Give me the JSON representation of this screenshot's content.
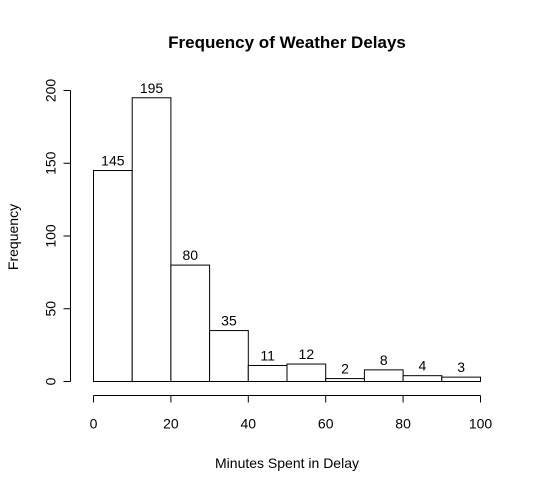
{
  "chart_data": {
    "type": "bar",
    "title": "Frequency of Weather Delays",
    "xlabel": "Minutes Spent in Delay",
    "ylabel": "Frequency",
    "bins": [
      [
        0,
        10
      ],
      [
        10,
        20
      ],
      [
        20,
        30
      ],
      [
        30,
        40
      ],
      [
        40,
        50
      ],
      [
        50,
        60
      ],
      [
        60,
        70
      ],
      [
        70,
        80
      ],
      [
        80,
        90
      ],
      [
        90,
        100
      ]
    ],
    "values": [
      145,
      195,
      80,
      35,
      11,
      12,
      2,
      8,
      4,
      3
    ],
    "data_labels": [
      "145",
      "195",
      "80",
      "35",
      "11",
      "12",
      "2",
      "8",
      "4",
      "3"
    ],
    "xlim": [
      0,
      100
    ],
    "ylim": [
      0,
      200
    ],
    "xticks": [
      "0",
      "20",
      "40",
      "60",
      "80",
      "100"
    ],
    "yticks": [
      "0",
      "50",
      "100",
      "150",
      "200"
    ],
    "grid": false,
    "legend": "none"
  }
}
